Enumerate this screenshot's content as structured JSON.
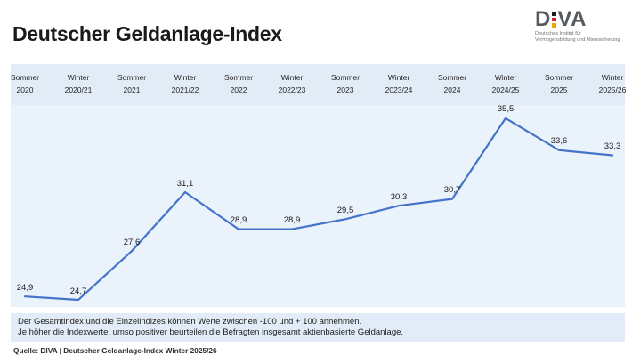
{
  "header": {
    "title": "Deutscher Geldanlage-Index",
    "logo": {
      "word_d": "D",
      "word_va": "VA",
      "dot_colors": [
        "#1d1d1b",
        "#d5232d",
        "#eaaa00"
      ],
      "tagline_line1": "Deutsches Institut für",
      "tagline_line2": "Vermögensbildung und Alterssicherung"
    }
  },
  "chart_data": {
    "type": "line",
    "title": "Deutscher Geldanlage-Index",
    "xlabel": "",
    "ylabel": "",
    "categories": [
      {
        "season": "Sommer",
        "period": "2020"
      },
      {
        "season": "Winter",
        "period": "2020/21"
      },
      {
        "season": "Sommer",
        "period": "2021"
      },
      {
        "season": "Winter",
        "period": "2021/22"
      },
      {
        "season": "Sommer",
        "period": "2022"
      },
      {
        "season": "Winter",
        "period": "2022/23"
      },
      {
        "season": "Sommer",
        "period": "2023"
      },
      {
        "season": "Winter",
        "period": "2023/24"
      },
      {
        "season": "Sommer",
        "period": "2024"
      },
      {
        "season": "Winter",
        "period": "2024/25"
      },
      {
        "season": "Sommer",
        "period": "2025"
      },
      {
        "season": "Winter",
        "period": "2025/26"
      }
    ],
    "values": [
      24.9,
      24.7,
      27.6,
      31.1,
      28.9,
      28.9,
      29.5,
      30.3,
      30.7,
      35.5,
      33.6,
      33.3
    ],
    "decimal_separator": ",",
    "line_color": "#4573c9",
    "plot_background": "#eaf2fb",
    "band_background": "#e1ecf7",
    "ylim": [
      24.3,
      36.3
    ],
    "y_axis_visible": false,
    "grid": false,
    "legend": false,
    "data_labels": true
  },
  "footer": {
    "note_line1": "Der Gesamtindex und die Einzelindizes können Werte zwischen -100 und + 100 annehmen.",
    "note_line2": "Je höher die Indexwerte, umso positiver beurteilen die Befragten insgesamt aktienbasierte Geldanlage.",
    "source": "Quelle: DIVA | Deutscher Geldanlage-Index Winter 2025/26"
  }
}
